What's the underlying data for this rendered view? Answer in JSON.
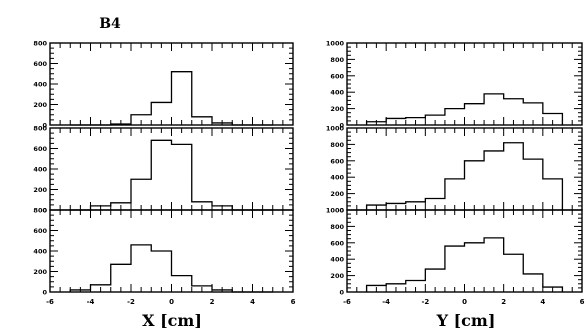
{
  "figure_label": "B4",
  "chart_data": [
    {
      "type": "histogram",
      "name": "left-stack",
      "xlabel": "X [cm]",
      "xlim": [
        -6,
        6
      ],
      "x_ticks": [
        "-6",
        "-4",
        "-2",
        "0",
        "2",
        "4",
        "6"
      ],
      "bin_edges": [
        -5,
        -4,
        -3,
        -2,
        -1,
        0,
        1,
        2,
        3,
        4,
        5
      ],
      "panels": [
        {
          "ylim": [
            0,
            800
          ],
          "y_ticks": [
            "0",
            "200",
            "400",
            "600",
            "800"
          ],
          "values": [
            0,
            0,
            10,
            100,
            220,
            520,
            80,
            20,
            0,
            0
          ]
        },
        {
          "ylim": [
            0,
            800
          ],
          "y_ticks": [
            "0",
            "200",
            "400",
            "600",
            "800"
          ],
          "values": [
            0,
            40,
            70,
            300,
            680,
            640,
            80,
            40,
            0,
            0
          ]
        },
        {
          "ylim": [
            0,
            800
          ],
          "y_ticks": [
            "0",
            "200",
            "400",
            "600",
            "800"
          ],
          "values": [
            20,
            70,
            270,
            460,
            400,
            160,
            60,
            20,
            0,
            0
          ]
        }
      ]
    },
    {
      "type": "histogram",
      "name": "right-stack",
      "xlabel": "Y [cm]",
      "xlim": [
        -6,
        6
      ],
      "x_ticks": [
        "-6",
        "-4",
        "-2",
        "0",
        "2",
        "4",
        "6"
      ],
      "bin_edges": [
        -5,
        -4,
        -3,
        -2,
        -1,
        0,
        1,
        2,
        3,
        4,
        5
      ],
      "panels": [
        {
          "ylim": [
            0,
            1000
          ],
          "y_ticks": [
            "0",
            "200",
            "400",
            "600",
            "800",
            "1000"
          ],
          "values": [
            40,
            80,
            90,
            120,
            200,
            260,
            380,
            320,
            270,
            140
          ]
        },
        {
          "ylim": [
            0,
            1000
          ],
          "y_ticks": [
            "0",
            "200",
            "400",
            "600",
            "800",
            "1000"
          ],
          "values": [
            60,
            80,
            100,
            140,
            380,
            600,
            720,
            820,
            620,
            380
          ]
        },
        {
          "ylim": [
            0,
            1000
          ],
          "y_ticks": [
            "0",
            "200",
            "400",
            "600",
            "800",
            "1000"
          ],
          "values": [
            80,
            100,
            140,
            280,
            560,
            600,
            660,
            460,
            220,
            60
          ]
        }
      ]
    }
  ]
}
